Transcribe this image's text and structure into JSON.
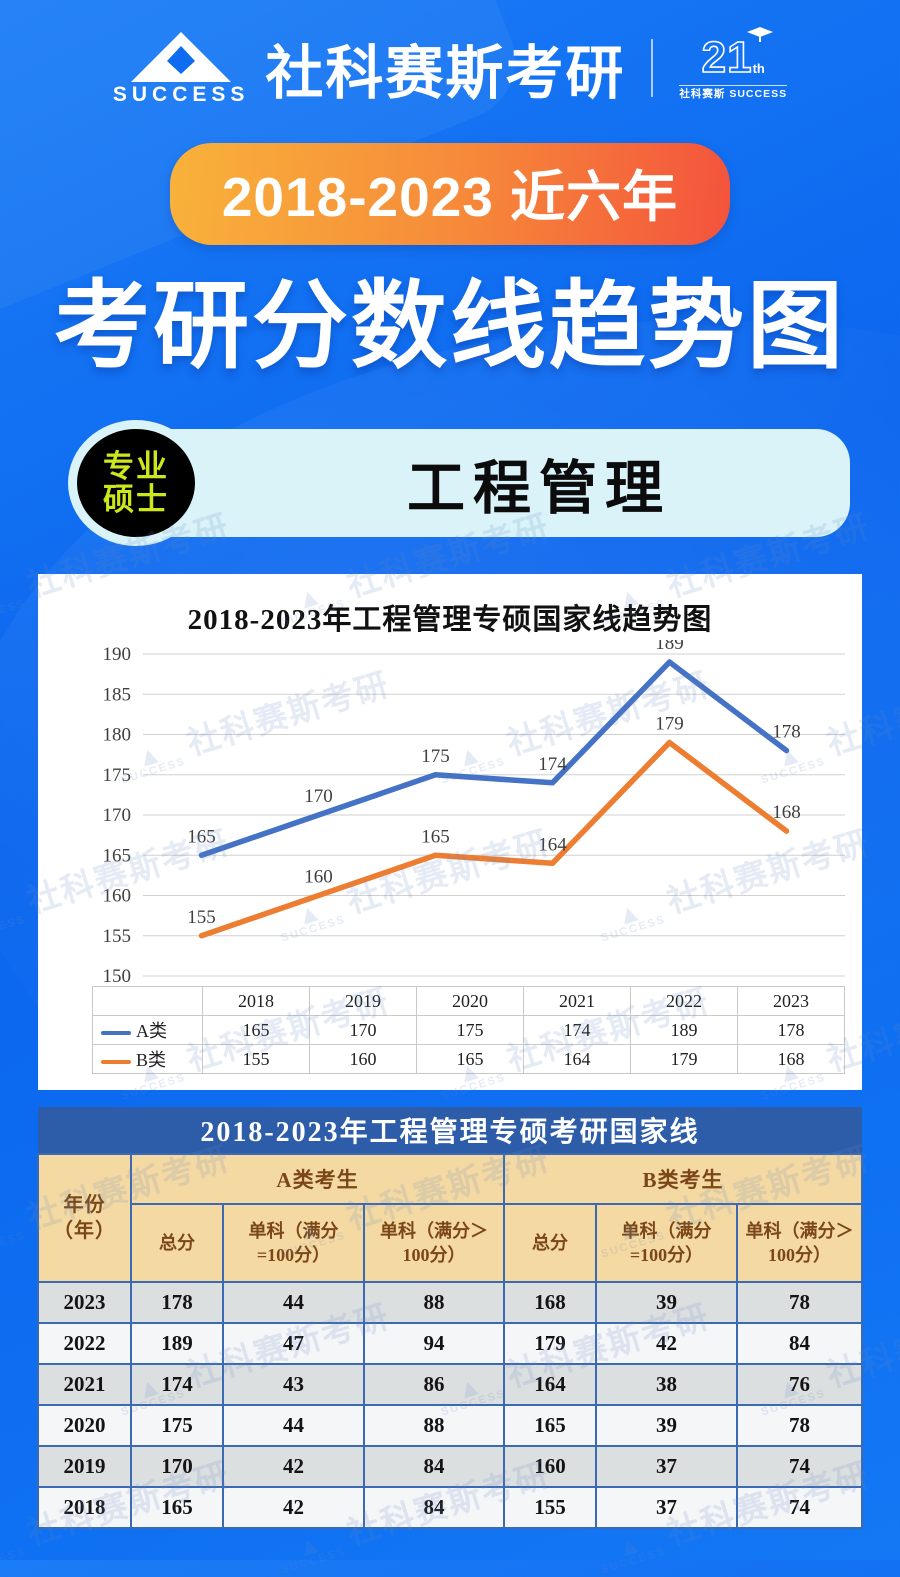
{
  "header": {
    "brand": "社科赛斯考研",
    "brand_en": "SUCCESS",
    "anniversary": {
      "number": "21",
      "suffix": "th",
      "sub_cn": "社科赛斯",
      "sub_en": "SUCCESS"
    }
  },
  "hero": {
    "pill": "2018-2023 近六年",
    "title": "考研分数线趋势图"
  },
  "subject": {
    "badge_line1": "专业",
    "badge_line2": "硕士",
    "name": "工程管理"
  },
  "watermark": {
    "text": "社科赛斯考研",
    "en": "SUCCESS",
    "tri": "▲"
  },
  "chart_data": {
    "type": "line",
    "title": "2018-2023年工程管理专硕国家线趋势图",
    "categories": [
      "2018",
      "2019",
      "2020",
      "2021",
      "2022",
      "2023"
    ],
    "series": [
      {
        "name": "A类",
        "color": "#4472c4",
        "values": [
          165,
          170,
          175,
          174,
          189,
          178
        ]
      },
      {
        "name": "B类",
        "color": "#ed7d31",
        "values": [
          155,
          160,
          165,
          164,
          179,
          168
        ]
      }
    ],
    "ylim": [
      150,
      190
    ],
    "ytick_step": 5,
    "grid": true,
    "legend_position": "bottom-table",
    "gridline_color": "#d0d0d0",
    "label_color": "#3f3f3f"
  },
  "national_table": {
    "title": "2018-2023年工程管理专硕考研国家线",
    "col_year": "年份（年）",
    "group_a": "A类考生",
    "group_b": "B类考生",
    "sub_headers": [
      "总分",
      "单科（满分=100分）",
      "单科（满分＞100分）"
    ],
    "rows": [
      {
        "year": "2023",
        "values": [
          178,
          44,
          88,
          168,
          39,
          78
        ]
      },
      {
        "year": "2022",
        "values": [
          189,
          47,
          94,
          179,
          42,
          84
        ]
      },
      {
        "year": "2021",
        "values": [
          174,
          43,
          86,
          164,
          38,
          76
        ]
      },
      {
        "year": "2020",
        "values": [
          175,
          44,
          88,
          165,
          39,
          78
        ]
      },
      {
        "year": "2019",
        "values": [
          170,
          42,
          84,
          160,
          37,
          74
        ]
      },
      {
        "year": "2018",
        "values": [
          165,
          42,
          84,
          155,
          37,
          74
        ]
      }
    ]
  }
}
